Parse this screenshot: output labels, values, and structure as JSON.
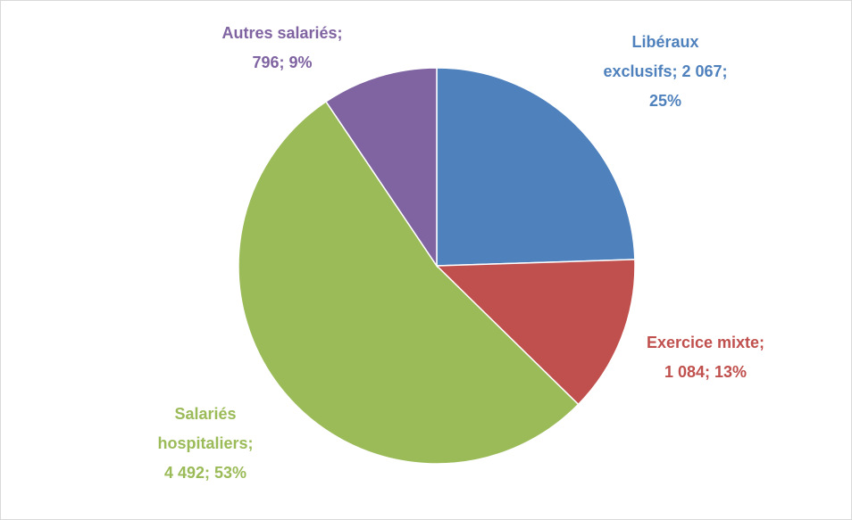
{
  "chart_data": {
    "type": "pie",
    "values": [
      2067,
      1084,
      4492,
      796
    ],
    "value_labels": [
      [
        "Libéraux",
        "exclusifs; 2 067;",
        "25%"
      ],
      [
        "Exercice mixte;",
        "1 084; 13%"
      ],
      [
        "Salariés",
        "hospitaliers;",
        "4 492; 53%"
      ],
      [
        "Autres salariés;",
        "796; 9%"
      ]
    ],
    "colors": [
      "#4f81bd",
      "#c0504d",
      "#9bbb59",
      "#8064a2"
    ]
  }
}
